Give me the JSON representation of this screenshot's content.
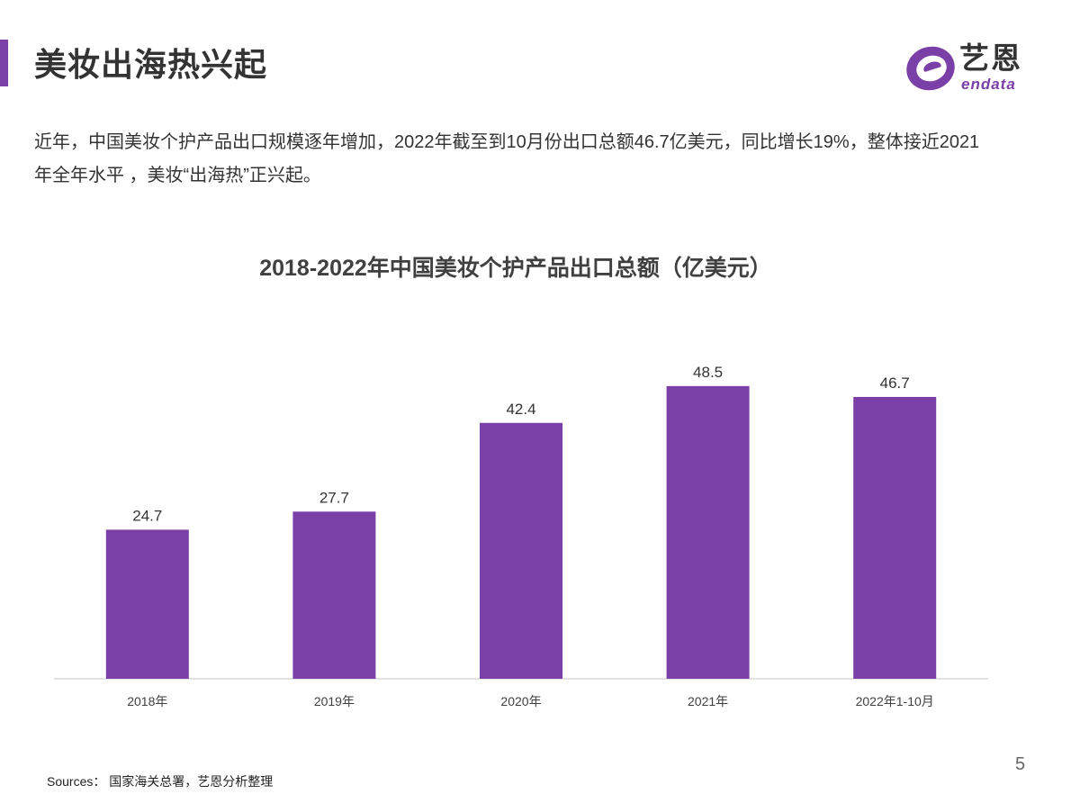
{
  "header": {
    "title": "美妆出海热兴起",
    "accent_color": "#7b3fa8"
  },
  "logo": {
    "cn_text": "艺恩",
    "en_text": "endata",
    "mark_icon": "endata-e-logo-icon"
  },
  "intro": {
    "text": "近年，中国美妆个护产品出口规模逐年增加，2022年截至到10月份出口总额46.7亿美元，同比增长19%，整体接近2021年全年水平 ，美妆“出海热”正兴起。"
  },
  "chart_data": {
    "type": "bar",
    "title": "2018-2022年中国美妆个护产品出口总额（亿美元）",
    "categories": [
      "2018年",
      "2019年",
      "2020年",
      "2021年",
      "2022年1-10月"
    ],
    "values": [
      24.7,
      27.7,
      42.4,
      48.5,
      46.7
    ],
    "value_labels": [
      "24.7",
      "27.7",
      "42.4",
      "48.5",
      "46.7"
    ],
    "xlabel": "",
    "ylabel": "",
    "ylim": [
      0,
      54
    ],
    "grid": false,
    "bar_color": "#7b3fa8",
    "data_labels": true
  },
  "footer": {
    "source": "Sources： 国家海关总署，艺恩分析整理",
    "page_number": "5"
  }
}
